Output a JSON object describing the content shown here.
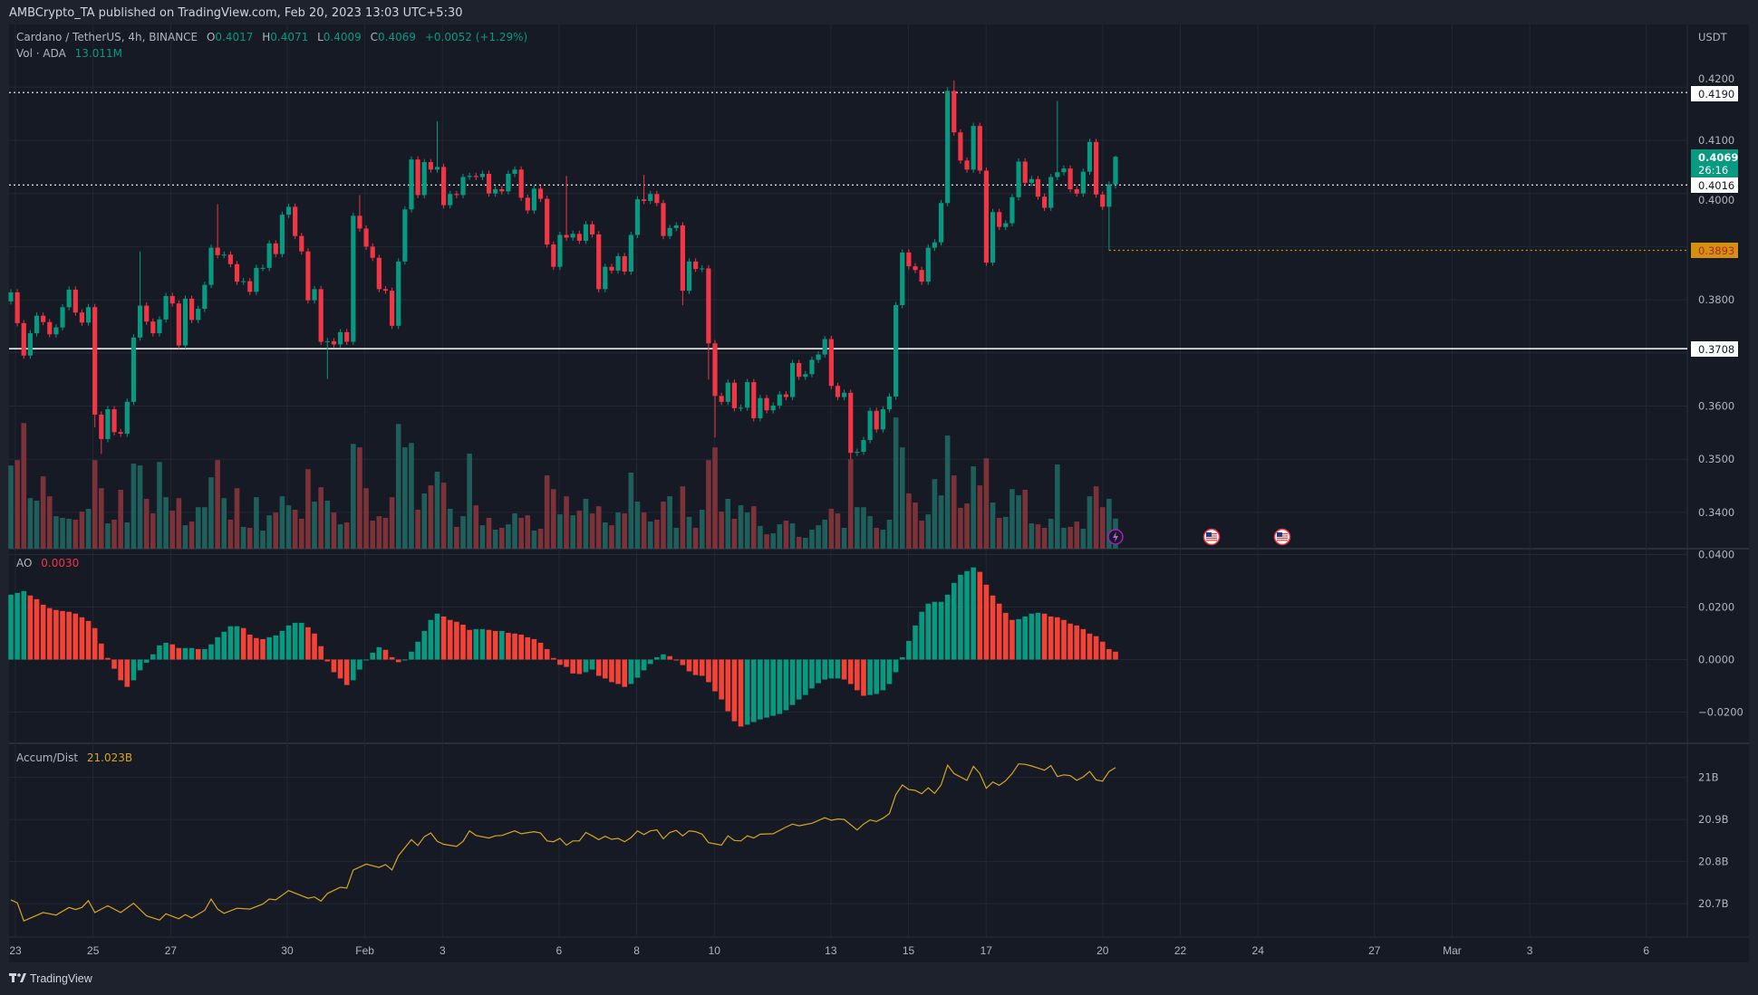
{
  "header": {
    "publisher_line": "AMBCrypto_TA published on TradingView.com, Feb 20, 2023 13:03 UTC+5:30"
  },
  "legend": {
    "symbol": "Cardano / TetherUS, 4h, BINANCE",
    "o_label": "O",
    "o": "0.4017",
    "h_label": "H",
    "h": "0.4071",
    "l_label": "L",
    "l": "0.4009",
    "c_label": "C",
    "c": "0.4069",
    "change": "+0.0052 (+1.29%)",
    "vol_label": "Vol · ADA",
    "vol": "13.011M"
  },
  "ao_legend": {
    "label": "AO",
    "value": "0.0030"
  },
  "ad_legend": {
    "label": "Accum/Dist",
    "value": "21.023B"
  },
  "price_axis": {
    "currency": "USDT",
    "ticks": [
      "0.4200",
      "0.4100",
      "0.4000",
      "0.3800",
      "0.3600",
      "0.3500",
      "0.3400"
    ],
    "badges": {
      "resistance": "0.4190",
      "last_price": "0.4069",
      "countdown": "26:16",
      "level_mid": "0.4016",
      "recent_low": "0.3893",
      "support": "0.3708"
    }
  },
  "ao_axis": {
    "ticks": [
      "0.0400",
      "0.0200",
      "0.0000",
      "−0.0200"
    ]
  },
  "ad_axis": {
    "ticks": [
      "21B",
      "20.9B",
      "20.8B",
      "20.7B"
    ]
  },
  "date_axis": {
    "labels": [
      "23",
      "25",
      "27",
      "30",
      "Feb",
      "3",
      "6",
      "8",
      "10",
      "13",
      "15",
      "17",
      "20",
      "22",
      "24",
      "27",
      "Mar",
      "3",
      "6"
    ]
  },
  "footer": {
    "brand": "TradingView"
  },
  "colors": {
    "up": "#089981",
    "down": "#f23645",
    "vol_up": "#1f5f5b",
    "vol_down": "#7b3238",
    "ao_up": "#089981",
    "ao_down": "#f44336",
    "ad_line": "#d9a520",
    "recent_low": "#d4900f"
  },
  "chart_data": {
    "type": "candlestick",
    "interval": "4h",
    "ylim": [
      0.335,
      0.423
    ],
    "horizontal_levels": [
      {
        "value": 0.419,
        "style": "dotted",
        "color": "#ffffff"
      },
      {
        "value": 0.4016,
        "style": "dotted",
        "color": "#ffffff"
      },
      {
        "value": 0.3893,
        "style": "dotted",
        "color": "#d4900f"
      },
      {
        "value": 0.3708,
        "style": "solid",
        "color": "#ffffff"
      }
    ],
    "first_open": 0.3797,
    "close": [
      0.3814,
      0.3756,
      0.3695,
      0.3737,
      0.377,
      0.3758,
      0.3735,
      0.3748,
      0.3786,
      0.3819,
      0.3776,
      0.3757,
      0.3786,
      0.3584,
      0.3538,
      0.3594,
      0.3551,
      0.3548,
      0.3608,
      0.3729,
      0.3789,
      0.3759,
      0.3737,
      0.3763,
      0.3807,
      0.3793,
      0.3714,
      0.3802,
      0.3762,
      0.3783,
      0.3828,
      0.3898,
      0.3884,
      0.3885,
      0.3867,
      0.3834,
      0.3835,
      0.3815,
      0.386,
      0.386,
      0.3906,
      0.3886,
      0.396,
      0.3975,
      0.392,
      0.3891,
      0.3799,
      0.382,
      0.3721,
      0.3722,
      0.3716,
      0.3739,
      0.3721,
      0.3958,
      0.3934,
      0.39,
      0.3879,
      0.382,
      0.3817,
      0.3751,
      0.3872,
      0.397,
      0.4064,
      0.3997,
      0.4059,
      0.4045,
      0.405,
      0.3978,
      0.3999,
      0.3997,
      0.4031,
      0.4033,
      0.4031,
      0.4037,
      0.4,
      0.4008,
      0.4004,
      0.4037,
      0.4045,
      0.3992,
      0.3968,
      0.4009,
      0.399,
      0.3904,
      0.3862,
      0.3922,
      0.3917,
      0.3924,
      0.3911,
      0.3942,
      0.3923,
      0.382,
      0.3862,
      0.3855,
      0.3882,
      0.3853,
      0.3922,
      0.3989,
      0.3986,
      0.3999,
      0.3982,
      0.392,
      0.3935,
      0.394,
      0.3817,
      0.3872,
      0.3858,
      0.3859,
      0.3718,
      0.3619,
      0.3608,
      0.3644,
      0.3596,
      0.3597,
      0.3645,
      0.3577,
      0.3615,
      0.3592,
      0.3601,
      0.3622,
      0.3617,
      0.3681,
      0.3655,
      0.366,
      0.3687,
      0.3697,
      0.3726,
      0.3638,
      0.3617,
      0.3625,
      0.3512,
      0.3514,
      0.3536,
      0.3591,
      0.3556,
      0.3594,
      0.3618,
      0.379,
      0.3889,
      0.3863,
      0.3856,
      0.3834,
      0.3898,
      0.3908,
      0.3982,
      0.4193,
      0.4115,
      0.4062,
      0.4045,
      0.4127,
      0.4043,
      0.387,
      0.3965,
      0.3937,
      0.3944,
      0.3993,
      0.406,
      0.402,
      0.4027,
      0.3994,
      0.3973,
      0.4031,
      0.404,
      0.4047,
      0.4008,
      0.4,
      0.4041,
      0.4097,
      0.3998,
      0.3975,
      0.4017,
      0.4069
    ],
    "notable_wicks": {
      "13": {
        "low": 0.356
      },
      "14": {
        "low": 0.351
      },
      "20": {
        "high": 0.3891
      },
      "32": {
        "high": 0.398
      },
      "49": {
        "low": 0.3651
      },
      "54": {
        "high": 0.3997
      },
      "66": {
        "high": 0.4136
      },
      "86": {
        "high": 0.4033
      },
      "98": {
        "high": 0.4035
      },
      "104": {
        "low": 0.379
      },
      "108": {
        "low": 0.365
      },
      "109": {
        "low": 0.3541
      },
      "130": {
        "low": 0.35
      },
      "145": {
        "high": 0.42
      },
      "146": {
        "high": 0.4213
      },
      "162": {
        "high": 0.4174
      },
      "170": {
        "low": 0.3893
      },
      "171": {
        "high": 0.4071,
        "low": 0.4009
      }
    },
    "volume_millions": [
      35.9,
      38.2,
      54.2,
      21.8,
      20.7,
      31.2,
      22.6,
      14.0,
      13.3,
      12.9,
      12.5,
      16.0,
      17.2,
      38.2,
      26.1,
      10.9,
      12.5,
      25.4,
      11.3,
      36.7,
      35.9,
      21.5,
      15.2,
      37.4,
      22.2,
      16.4,
      21.8,
      10.1,
      11.7,
      17.9,
      17.9,
      30.8,
      38.2,
      21.8,
      12.5,
      26.1,
      9.4,
      9.0,
      22.2,
      7.8,
      14.4,
      15.6,
      22.6,
      18.7,
      16.8,
      12.9,
      34.3,
      20.3,
      26.5,
      20.7,
      15.6,
      10.5,
      11.3,
      45.2,
      43.7,
      26.1,
      12.1,
      14.0,
      13.3,
      22.2,
      53.8,
      43.7,
      45.6,
      16.8,
      23.8,
      27.3,
      33.2,
      28.5,
      17.2,
      9.4,
      14.0,
      41.0,
      18.7,
      10.1,
      13.3,
      8.2,
      9.0,
      10.5,
      15.2,
      13.3,
      14.4,
      7.8,
      8.6,
      31.6,
      25.7,
      14.8,
      22.6,
      14.4,
      16.4,
      21.5,
      15.2,
      18.3,
      11.3,
      10.1,
      15.6,
      15.2,
      32.8,
      20.3,
      15.6,
      11.7,
      12.5,
      20.3,
      22.6,
      9.0,
      26.9,
      13.7,
      9.0,
      16.8,
      38.2,
      43.7,
      16.0,
      21.5,
      12.9,
      18.7,
      15.6,
      18.3,
      9.8,
      6.2,
      6.6,
      10.5,
      12.1,
      10.9,
      5.1,
      4.7,
      8.2,
      10.1,
      12.5,
      17.2,
      15.2,
      9.0,
      38.6,
      17.9,
      17.9,
      14.0,
      9.0,
      8.2,
      12.5,
      56.6,
      43.7,
      23.8,
      19.9,
      12.1,
      14.8,
      30.0,
      23.0,
      48.8,
      31.6,
      17.6,
      19.5,
      35.5,
      27.3,
      39.0,
      19.9,
      13.3,
      13.7,
      25.7,
      23.0,
      25.4,
      10.9,
      10.5,
      9.0,
      12.9,
      36.3,
      9.0,
      9.4,
      11.7,
      8.6,
      22.6,
      26.9,
      17.9,
      21.5,
      13.0
    ],
    "ao": [
      0.0247,
      0.0254,
      0.0261,
      0.0244,
      0.023,
      0.0209,
      0.0196,
      0.0189,
      0.0185,
      0.0182,
      0.0175,
      0.0161,
      0.0147,
      0.012,
      0.0061,
      0.0006,
      -0.0035,
      -0.0079,
      -0.0104,
      -0.0079,
      -0.0041,
      -0.0012,
      0.002,
      0.0054,
      0.0064,
      0.0058,
      0.0044,
      0.0044,
      0.0044,
      0.004,
      0.004,
      0.0058,
      0.0085,
      0.0106,
      0.0127,
      0.0127,
      0.012,
      0.0095,
      0.0082,
      0.0078,
      0.0085,
      0.0092,
      0.0109,
      0.013,
      0.014,
      0.014,
      0.0123,
      0.0099,
      0.0051,
      -0.0007,
      -0.0048,
      -0.0072,
      -0.0097,
      -0.0079,
      -0.0038,
      -0.0003,
      0.0026,
      0.0047,
      0.0037,
      0.0009,
      -0.001,
      -0.0003,
      0.003,
      0.0068,
      0.0109,
      0.0151,
      0.0175,
      0.0164,
      0.0151,
      0.0144,
      0.0133,
      0.0113,
      0.0116,
      0.0116,
      0.0113,
      0.0109,
      0.0109,
      0.0102,
      0.0099,
      0.0095,
      0.0085,
      0.0078,
      0.0064,
      0.004,
      0.0006,
      -0.002,
      -0.0028,
      -0.0053,
      -0.0055,
      -0.0048,
      -0.0038,
      -0.0062,
      -0.0072,
      -0.0086,
      -0.0093,
      -0.0104,
      -0.0093,
      -0.0069,
      -0.0041,
      -0.0017,
      0.0009,
      0.002,
      0.0013,
      -0.0003,
      -0.0021,
      -0.0045,
      -0.0059,
      -0.0062,
      -0.0086,
      -0.0121,
      -0.0152,
      -0.0197,
      -0.0235,
      -0.0255,
      -0.0248,
      -0.0238,
      -0.0228,
      -0.0221,
      -0.0214,
      -0.0207,
      -0.0193,
      -0.0173,
      -0.0152,
      -0.0135,
      -0.011,
      -0.009,
      -0.0076,
      -0.0072,
      -0.0072,
      -0.0076,
      -0.0093,
      -0.0117,
      -0.0138,
      -0.0135,
      -0.0131,
      -0.0117,
      -0.0093,
      -0.0048,
      0.0009,
      0.0071,
      0.013,
      0.0182,
      0.0213,
      0.022,
      0.022,
      0.0247,
      0.0292,
      0.0323,
      0.0337,
      0.0351,
      0.0334,
      0.0285,
      0.0244,
      0.0213,
      0.0178,
      0.0151,
      0.0154,
      0.0164,
      0.0175,
      0.0178,
      0.0175,
      0.0164,
      0.0161,
      0.0151,
      0.0137,
      0.013,
      0.0116,
      0.0099,
      0.0089,
      0.0068,
      0.004,
      0.003
    ],
    "accum_dist_billions": [
      [
        0,
        20.709
      ],
      [
        1,
        20.702
      ],
      [
        2,
        20.659
      ],
      [
        5,
        20.679
      ],
      [
        7,
        20.673
      ],
      [
        9,
        20.691
      ],
      [
        10,
        20.686
      ],
      [
        11,
        20.691
      ],
      [
        12,
        20.707
      ],
      [
        13,
        20.679
      ],
      [
        15,
        20.695
      ],
      [
        17,
        20.679
      ],
      [
        19,
        20.701
      ],
      [
        21,
        20.671
      ],
      [
        23,
        20.661
      ],
      [
        24,
        20.676
      ],
      [
        26,
        20.664
      ],
      [
        27,
        20.674
      ],
      [
        28,
        20.666
      ],
      [
        30,
        20.684
      ],
      [
        31,
        20.711
      ],
      [
        32,
        20.687
      ],
      [
        33,
        20.677
      ],
      [
        35,
        20.689
      ],
      [
        37,
        20.687
      ],
      [
        39,
        20.699
      ],
      [
        40,
        20.711
      ],
      [
        41,
        20.709
      ],
      [
        43,
        20.731
      ],
      [
        46,
        20.713
      ],
      [
        47,
        20.716
      ],
      [
        48,
        20.706
      ],
      [
        49,
        20.724
      ],
      [
        51,
        20.739
      ],
      [
        52,
        20.737
      ],
      [
        53,
        20.78
      ],
      [
        55,
        20.794
      ],
      [
        57,
        20.786
      ],
      [
        58,
        20.793
      ],
      [
        59,
        20.78
      ],
      [
        60,
        20.814
      ],
      [
        62,
        20.852
      ],
      [
        63,
        20.838
      ],
      [
        64,
        20.859
      ],
      [
        65,
        20.868
      ],
      [
        66,
        20.848
      ],
      [
        67,
        20.841
      ],
      [
        69,
        20.836
      ],
      [
        70,
        20.848
      ],
      [
        71,
        20.873
      ],
      [
        72,
        20.862
      ],
      [
        74,
        20.856
      ],
      [
        75,
        20.861
      ],
      [
        76,
        20.862
      ],
      [
        78,
        20.873
      ],
      [
        79,
        20.866
      ],
      [
        81,
        20.871
      ],
      [
        82,
        20.868
      ],
      [
        83,
        20.849
      ],
      [
        84,
        20.847
      ],
      [
        85,
        20.855
      ],
      [
        86,
        20.839
      ],
      [
        87,
        20.849
      ],
      [
        88,
        20.849
      ],
      [
        89,
        20.869
      ],
      [
        90,
        20.861
      ],
      [
        91,
        20.852
      ],
      [
        92,
        20.86
      ],
      [
        93,
        20.853
      ],
      [
        94,
        20.855
      ],
      [
        95,
        20.847
      ],
      [
        96,
        20.857
      ],
      [
        97,
        20.873
      ],
      [
        98,
        20.864
      ],
      [
        99,
        20.873
      ],
      [
        100,
        20.875
      ],
      [
        101,
        20.854
      ],
      [
        102,
        20.869
      ],
      [
        103,
        20.874
      ],
      [
        104,
        20.861
      ],
      [
        105,
        20.873
      ],
      [
        106,
        20.871
      ],
      [
        107,
        20.865
      ],
      [
        108,
        20.845
      ],
      [
        110,
        20.839
      ],
      [
        111,
        20.861
      ],
      [
        112,
        20.85
      ],
      [
        113,
        20.849
      ],
      [
        114,
        20.861
      ],
      [
        115,
        20.856
      ],
      [
        116,
        20.865
      ],
      [
        118,
        20.866
      ],
      [
        120,
        20.882
      ],
      [
        121,
        20.889
      ],
      [
        122,
        20.885
      ],
      [
        124,
        20.891
      ],
      [
        126,
        20.904
      ],
      [
        127,
        20.898
      ],
      [
        128,
        20.901
      ],
      [
        129,
        20.9
      ],
      [
        131,
        20.875
      ],
      [
        132,
        20.889
      ],
      [
        133,
        20.899
      ],
      [
        134,
        20.895
      ],
      [
        135,
        20.903
      ],
      [
        136,
        20.914
      ],
      [
        137,
        20.959
      ],
      [
        138,
        20.982
      ],
      [
        139,
        20.971
      ],
      [
        140,
        20.969
      ],
      [
        141,
        20.961
      ],
      [
        142,
        20.975
      ],
      [
        143,
        20.962
      ],
      [
        144,
        20.982
      ],
      [
        145,
        21.029
      ],
      [
        146,
        21.009
      ],
      [
        148,
        20.993
      ],
      [
        149,
        21.026
      ],
      [
        150,
        21.009
      ],
      [
        151,
        20.974
      ],
      [
        152,
        20.989
      ],
      [
        153,
        20.981
      ],
      [
        154,
        20.992
      ],
      [
        155,
        21.009
      ],
      [
        156,
        21.032
      ],
      [
        157,
        21.031
      ],
      [
        158,
        21.027
      ],
      [
        160,
        21.017
      ],
      [
        161,
        21.028
      ],
      [
        162,
        21.002
      ],
      [
        163,
        21.006
      ],
      [
        164,
        21.004
      ],
      [
        165,
        20.993
      ],
      [
        166,
        21.001
      ],
      [
        167,
        21.014
      ],
      [
        168,
        20.994
      ],
      [
        169,
        20.991
      ],
      [
        170,
        21.014
      ],
      [
        171,
        21.023
      ]
    ],
    "events": [
      "lightning-event-icon",
      "us-flag-event-icon",
      "us-flag-event-icon"
    ]
  }
}
